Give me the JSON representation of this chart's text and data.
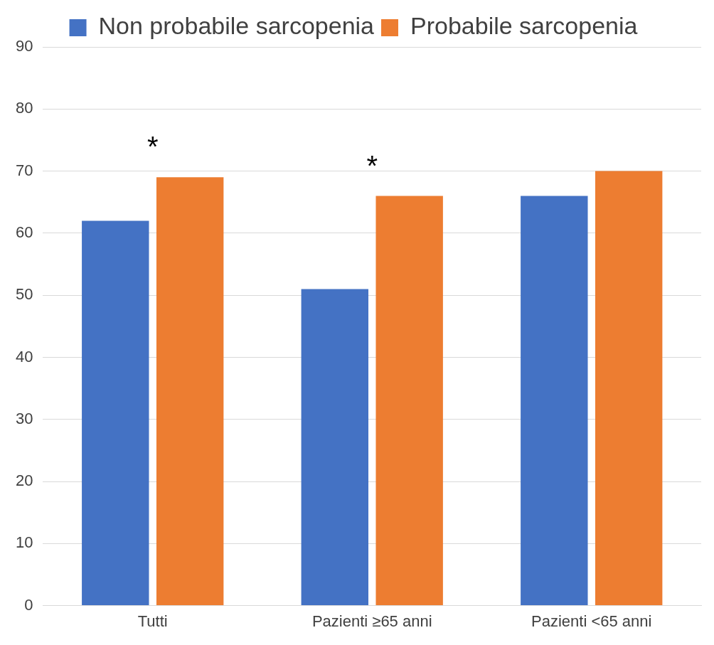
{
  "chart_data": {
    "type": "bar",
    "categories": [
      "Tutti",
      "Pazienti ≥65 anni",
      "Pazienti <65 anni"
    ],
    "series": [
      {
        "name": "Non probabile sarcopenia",
        "color": "#4472c4",
        "values": [
          62,
          51,
          66
        ]
      },
      {
        "name": "Probabile sarcopenia",
        "color": "#ed7d31",
        "values": [
          69,
          66,
          70
        ]
      }
    ],
    "ylim": [
      0,
      90
    ],
    "yticks": [
      0,
      10,
      20,
      30,
      40,
      50,
      60,
      70,
      80,
      90
    ],
    "grid": "y",
    "legend": "top",
    "annotations": [
      "*",
      "*"
    ]
  }
}
